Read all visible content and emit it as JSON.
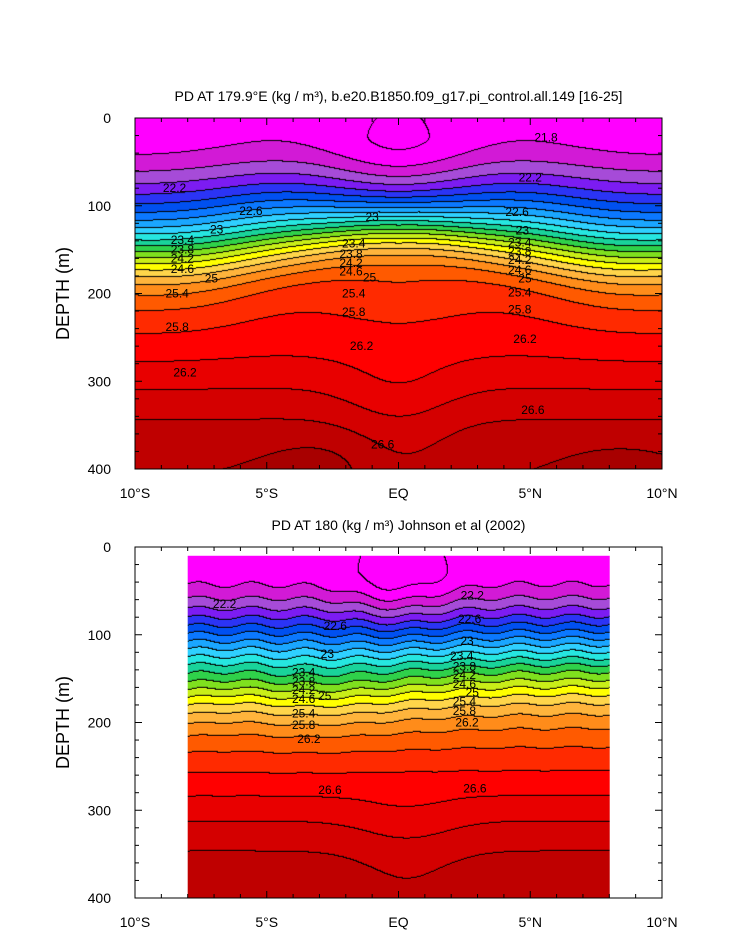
{
  "chart_data": [
    {
      "type": "contour",
      "title": "PD AT 179.9°E (kg / m³), b.e20.B1850.f09_g17.pi_control.all.149 [16-25]",
      "ylabel": "DEPTH (m)",
      "xlabel": "",
      "x_ticks": [
        "10°S",
        "5°S",
        "EQ",
        "5°N",
        "10°N"
      ],
      "x_tick_values": [
        -10,
        -5,
        0,
        5,
        10
      ],
      "y_ticks": [
        "0",
        "100",
        "200",
        "300",
        "400"
      ],
      "y_tick_values": [
        0,
        100,
        200,
        300,
        400
      ],
      "xlim": [
        -10,
        10
      ],
      "ylim": [
        0,
        400
      ],
      "y_inverted": true,
      "data_xlim": [
        -10,
        10
      ],
      "contour_interval": 0.2,
      "levels_min": 21.6,
      "levels_max": 26.8,
      "contour_labels": [
        {
          "value": "21.8",
          "lat": 5.6,
          "depth": 22
        },
        {
          "value": "22.2",
          "lat": -8.5,
          "depth": 80
        },
        {
          "value": "22.2",
          "lat": 5.0,
          "depth": 68
        },
        {
          "value": "22.6",
          "lat": -5.6,
          "depth": 106
        },
        {
          "value": "22.6",
          "lat": 4.5,
          "depth": 107
        },
        {
          "value": "23",
          "lat": -6.9,
          "depth": 127
        },
        {
          "value": "23",
          "lat": -1.0,
          "depth": 113
        },
        {
          "value": "23",
          "lat": 4.7,
          "depth": 128
        },
        {
          "value": "23.4",
          "lat": -8.2,
          "depth": 139
        },
        {
          "value": "23.4",
          "lat": -1.7,
          "depth": 143
        },
        {
          "value": "23.4",
          "lat": 4.6,
          "depth": 142
        },
        {
          "value": "23.8",
          "lat": -8.2,
          "depth": 150
        },
        {
          "value": "23.8",
          "lat": -1.8,
          "depth": 155
        },
        {
          "value": "23.8",
          "lat": 4.6,
          "depth": 152
        },
        {
          "value": "24.2",
          "lat": -8.2,
          "depth": 160
        },
        {
          "value": "24.2",
          "lat": -1.8,
          "depth": 165
        },
        {
          "value": "24.2",
          "lat": 4.6,
          "depth": 162
        },
        {
          "value": "24.6",
          "lat": -8.2,
          "depth": 172
        },
        {
          "value": "24.6",
          "lat": -1.8,
          "depth": 175
        },
        {
          "value": "24.6",
          "lat": 4.6,
          "depth": 173
        },
        {
          "value": "25",
          "lat": -7.1,
          "depth": 183
        },
        {
          "value": "25",
          "lat": -1.1,
          "depth": 182
        },
        {
          "value": "25",
          "lat": 4.8,
          "depth": 183
        },
        {
          "value": "25.4",
          "lat": -8.4,
          "depth": 200
        },
        {
          "value": "25.4",
          "lat": -1.7,
          "depth": 200
        },
        {
          "value": "25.4",
          "lat": 4.6,
          "depth": 199
        },
        {
          "value": "25.8",
          "lat": -8.4,
          "depth": 238
        },
        {
          "value": "25.8",
          "lat": -1.7,
          "depth": 221
        },
        {
          "value": "25.8",
          "lat": 4.6,
          "depth": 218
        },
        {
          "value": "26.2",
          "lat": -1.4,
          "depth": 260
        },
        {
          "value": "26.2",
          "lat": 4.8,
          "depth": 252
        },
        {
          "value": "26.2",
          "lat": -8.1,
          "depth": 290
        },
        {
          "value": "26.6",
          "lat": -0.6,
          "depth": 372
        },
        {
          "value": "26.6",
          "lat": 5.1,
          "depth": 333
        }
      ]
    },
    {
      "type": "contour",
      "title": "PD AT 180 (kg / m³) Johnson et al (2002)",
      "ylabel": "DEPTH (m)",
      "xlabel": "",
      "x_ticks": [
        "10°S",
        "5°S",
        "EQ",
        "5°N",
        "10°N"
      ],
      "x_tick_values": [
        -10,
        -5,
        0,
        5,
        10
      ],
      "y_ticks": [
        "0",
        "100",
        "200",
        "300",
        "400"
      ],
      "y_tick_values": [
        0,
        100,
        200,
        300,
        400
      ],
      "xlim": [
        -10,
        10
      ],
      "ylim": [
        0,
        400
      ],
      "y_inverted": true,
      "data_xlim": [
        -8,
        8
      ],
      "data_ylim": [
        10,
        400
      ],
      "contour_interval": 0.2,
      "levels_min": 21.6,
      "levels_max": 26.8,
      "contour_labels": [
        {
          "value": "22.2",
          "lat": -6.6,
          "depth": 65
        },
        {
          "value": "22.2",
          "lat": 2.8,
          "depth": 55
        },
        {
          "value": "22.6",
          "lat": -2.4,
          "depth": 90
        },
        {
          "value": "22.6",
          "lat": 2.7,
          "depth": 82
        },
        {
          "value": "23",
          "lat": -2.7,
          "depth": 122
        },
        {
          "value": "23",
          "lat": 2.6,
          "depth": 107
        },
        {
          "value": "23.4",
          "lat": -3.6,
          "depth": 143
        },
        {
          "value": "23.4",
          "lat": 2.4,
          "depth": 124
        },
        {
          "value": "23.8",
          "lat": -3.6,
          "depth": 153
        },
        {
          "value": "23.8",
          "lat": 2.5,
          "depth": 136
        },
        {
          "value": "24.2",
          "lat": -3.6,
          "depth": 163
        },
        {
          "value": "24.2",
          "lat": 2.5,
          "depth": 146
        },
        {
          "value": "24.6",
          "lat": -3.6,
          "depth": 173
        },
        {
          "value": "24.6",
          "lat": 2.5,
          "depth": 156
        },
        {
          "value": "25",
          "lat": -2.8,
          "depth": 170
        },
        {
          "value": "25",
          "lat": 2.8,
          "depth": 166
        },
        {
          "value": "25.4",
          "lat": -3.6,
          "depth": 190
        },
        {
          "value": "25.4",
          "lat": 2.5,
          "depth": 176
        },
        {
          "value": "25.8",
          "lat": -3.6,
          "depth": 203
        },
        {
          "value": "25.8",
          "lat": 2.5,
          "depth": 187
        },
        {
          "value": "26.2",
          "lat": -3.4,
          "depth": 219
        },
        {
          "value": "26.2",
          "lat": 2.6,
          "depth": 200
        },
        {
          "value": "26.6",
          "lat": -2.6,
          "depth": 277
        },
        {
          "value": "26.6",
          "lat": 2.9,
          "depth": 275
        }
      ]
    }
  ],
  "colors": {
    "colormap": [
      "#ff00ff",
      "#d21ad6",
      "#a64bd8",
      "#7c1cf2",
      "#2b34f5",
      "#0050f0",
      "#0b78ff",
      "#1aa6ff",
      "#2fd0ff",
      "#26e6e0",
      "#19d39a",
      "#2fd14a",
      "#7fe01e",
      "#c9ee18",
      "#ffff00",
      "#ffd54a",
      "#ffb43c",
      "#ff8c1a",
      "#ff5a00",
      "#ff2a00",
      "#ff0000",
      "#e80000",
      "#d40000",
      "#bf0000",
      "#a80000",
      "#900000"
    ],
    "contour_line": "#000000",
    "axis": "#000000"
  }
}
